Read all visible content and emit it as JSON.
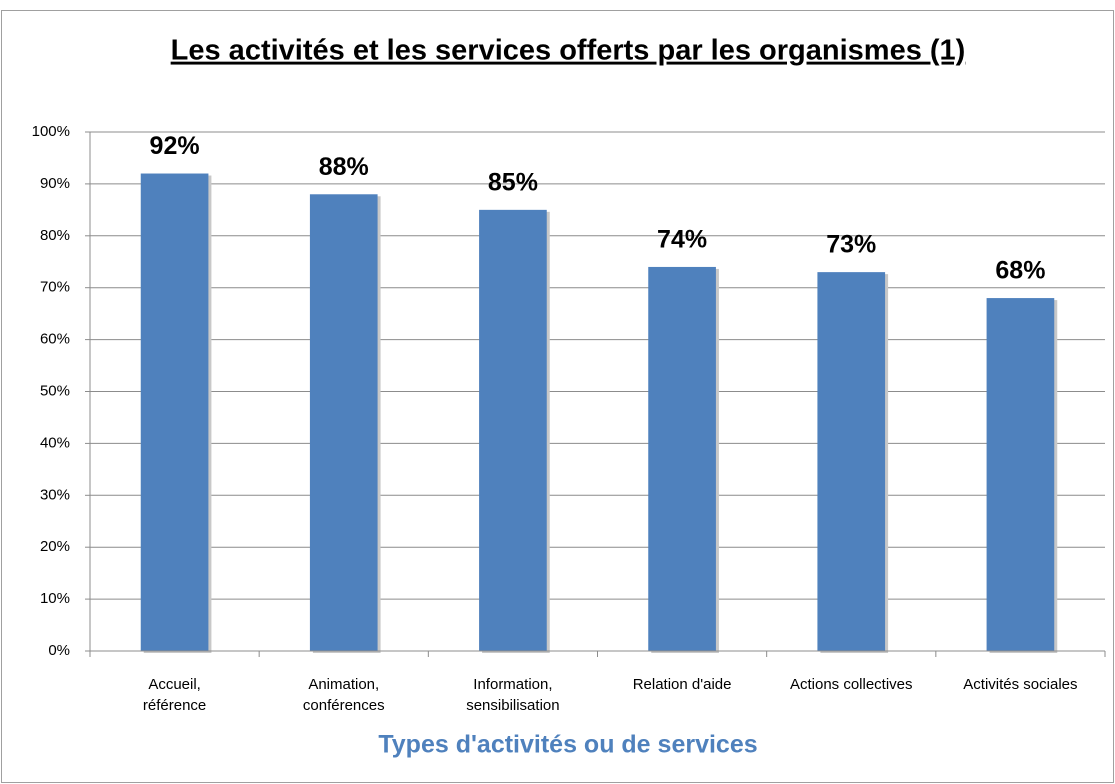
{
  "chart_data": {
    "type": "bar",
    "title": "Les activités et les services offerts par les organismes (1)",
    "x_label": "Types d'activités ou de services",
    "categories": [
      "Accueil,\nréférence",
      "Animation,\nconférences",
      "Information,\nsensibilisation",
      "Relation d'aide",
      "Actions collectives",
      "Activités sociales"
    ],
    "values": [
      92,
      88,
      85,
      74,
      73,
      68
    ],
    "value_labels": [
      "92%",
      "88%",
      "85%",
      "74%",
      "73%",
      "68%"
    ],
    "color": "#4f81bd",
    "ylim": [
      0,
      100
    ],
    "yticks": [
      {
        "value": 0,
        "label": "0%"
      },
      {
        "value": 10,
        "label": "10%"
      },
      {
        "value": 20,
        "label": "20%"
      },
      {
        "value": 30,
        "label": "30%"
      },
      {
        "value": 40,
        "label": "40%"
      },
      {
        "value": 50,
        "label": "50%"
      },
      {
        "value": 60,
        "label": "60%"
      },
      {
        "value": 70,
        "label": "70%"
      },
      {
        "value": 80,
        "label": "80%"
      },
      {
        "value": 90,
        "label": "90%"
      },
      {
        "value": 100,
        "label": "100%"
      }
    ],
    "grid": true
  }
}
